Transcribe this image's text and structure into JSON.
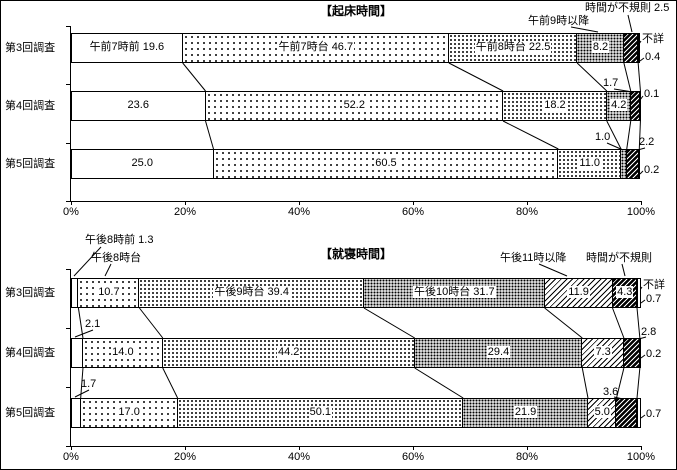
{
  "chart_data": [
    {
      "type": "bar",
      "orientation": "horizontal",
      "stacked": true,
      "title": "【起床時間】",
      "categories": [
        "第3回調査",
        "第4回調査",
        "第5回調査"
      ],
      "series": [
        {
          "name": "午前7時前",
          "pattern": "plain",
          "values": [
            19.6,
            23.6,
            25.0
          ]
        },
        {
          "name": "午前7時台",
          "pattern": "dots-light",
          "values": [
            46.7,
            52.2,
            60.5
          ]
        },
        {
          "name": "午前8時台",
          "pattern": "dots-medium",
          "values": [
            22.5,
            18.2,
            11.0
          ]
        },
        {
          "name": "午前9時以降",
          "pattern": "dots-dense",
          "values": [
            8.2,
            4.2,
            1.0
          ]
        },
        {
          "name": "時間が不規則",
          "pattern": "hatch-dark",
          "values": [
            2.5,
            1.7,
            2.2
          ]
        },
        {
          "name": "不詳",
          "pattern": "vlines",
          "values": [
            0.4,
            0.1,
            0.2
          ]
        }
      ],
      "x_ticks": [
        "0%",
        "20%",
        "40%",
        "60%",
        "80%",
        "100%"
      ],
      "xlim": [
        0,
        100
      ],
      "unit": "%",
      "grid": false,
      "legend": "none (labels annotated on bars)"
    },
    {
      "type": "bar",
      "orientation": "horizontal",
      "stacked": true,
      "title": "【就寝時間】",
      "categories": [
        "第3回調査",
        "第4回調査",
        "第5回調査"
      ],
      "series": [
        {
          "name": "午後8時前",
          "pattern": "plain",
          "values": [
            1.3,
            2.1,
            1.7
          ]
        },
        {
          "name": "午後8時台",
          "pattern": "dots-light",
          "values": [
            10.7,
            14.0,
            17.0
          ]
        },
        {
          "name": "午後9時台",
          "pattern": "dots-medium",
          "values": [
            39.4,
            44.2,
            50.1
          ]
        },
        {
          "name": "午後10時台",
          "pattern": "dots-dense",
          "values": [
            31.7,
            29.4,
            21.9
          ]
        },
        {
          "name": "午後11時以降",
          "pattern": "hatch-light",
          "values": [
            11.9,
            7.3,
            5.0
          ]
        },
        {
          "name": "時間が不規則",
          "pattern": "hatch-dark",
          "values": [
            4.3,
            2.8,
            3.6
          ]
        },
        {
          "name": "不詳",
          "pattern": "vlines",
          "values": [
            0.7,
            0.2,
            0.7
          ]
        }
      ],
      "x_ticks": [
        "0%",
        "20%",
        "40%",
        "60%",
        "80%",
        "100%"
      ],
      "xlim": [
        0,
        100
      ],
      "unit": "%",
      "grid": false,
      "legend": "none (labels annotated on bars)"
    }
  ],
  "colors": {
    "foreground": "#000000",
    "background": "#ffffff"
  }
}
